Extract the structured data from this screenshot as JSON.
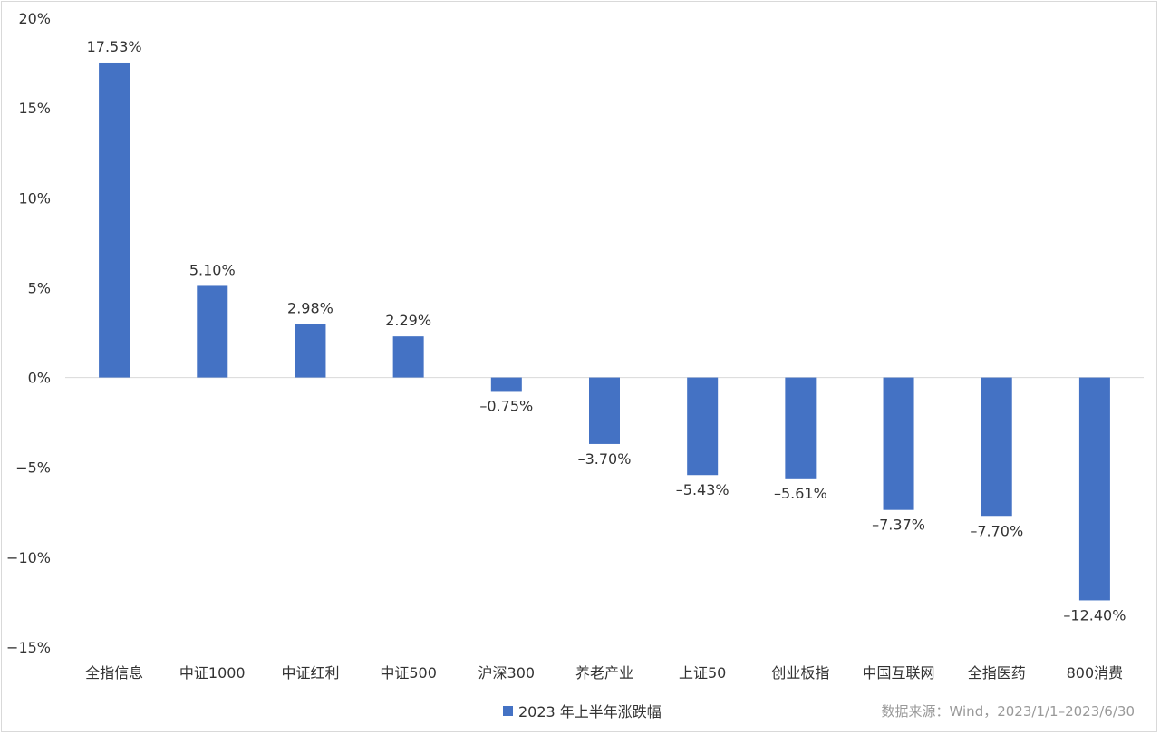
{
  "chart_data": {
    "type": "bar",
    "categories": [
      "全指信息",
      "中证1000",
      "中证红利",
      "中证500",
      "沪深300",
      "养老产业",
      "上证50",
      "创业板指",
      "中国互联网",
      "全指医药",
      "800消费"
    ],
    "series": [
      {
        "name": "2023 年上半年涨跌幅",
        "values": [
          17.53,
          5.1,
          2.98,
          2.29,
          -0.75,
          -3.7,
          -5.43,
          -5.61,
          -7.37,
          -7.7,
          -12.4
        ],
        "data_labels": [
          "17.53%",
          "5.10%",
          "2.98%",
          "2.29%",
          "–0.75%",
          "–3.70%",
          "–5.43%",
          "–5.61%",
          "–7.37%",
          "–7.70%",
          "–12.40%"
        ],
        "color": "#4472C4"
      }
    ],
    "ylim": [
      -15,
      20
    ],
    "yticks": [
      20,
      15,
      10,
      5,
      0,
      -5,
      -10,
      -15
    ],
    "ytick_labels": [
      "20%",
      "15%",
      "10%",
      "5%",
      "0%",
      "−5%",
      "−10%",
      "−15%"
    ],
    "title": "",
    "xlabel": "",
    "ylabel": "",
    "grid": false,
    "legend_position": "bottom-center",
    "source_note": "数据来源：Wind，2023/1/1–2023/6/30"
  }
}
